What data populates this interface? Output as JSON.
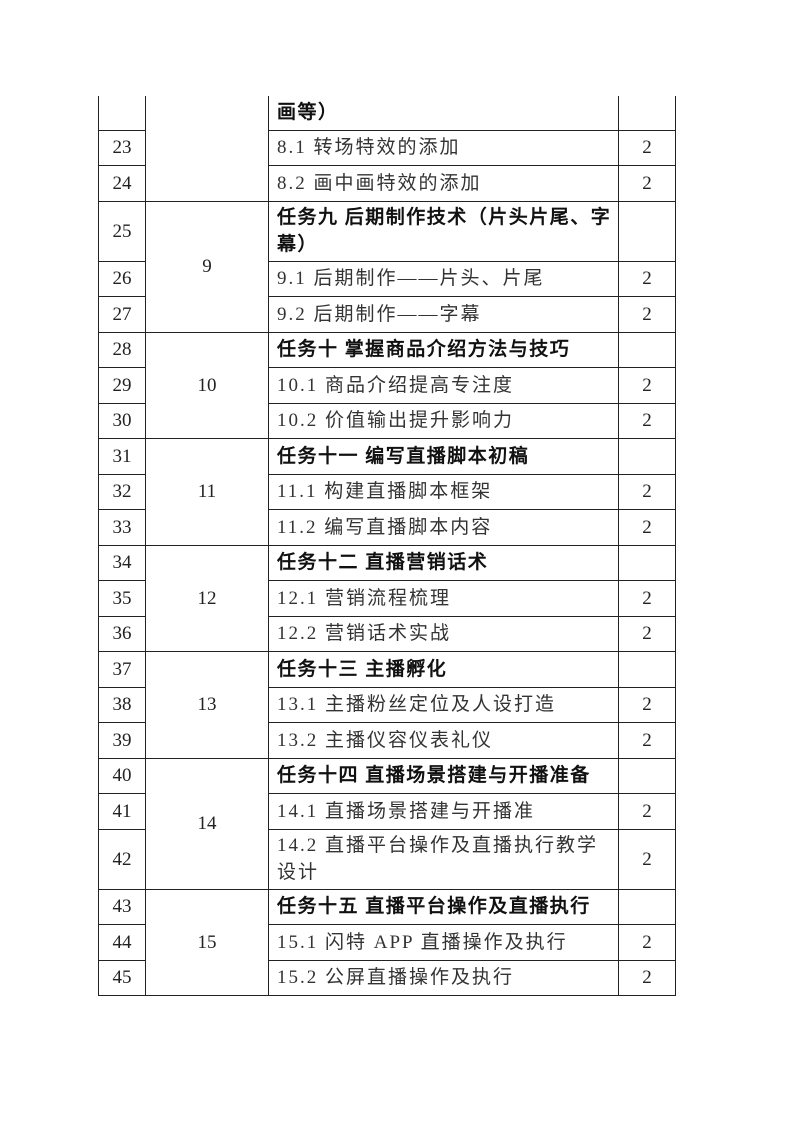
{
  "groups": [
    {
      "group": "",
      "rows": [
        {
          "no": "",
          "title": "画等）",
          "hours": "",
          "bold": true,
          "partial": true
        },
        {
          "no": "23",
          "title": "8.1 转场特效的添加",
          "hours": "2"
        },
        {
          "no": "24",
          "title": "8.2 画中画特效的添加",
          "hours": "2"
        }
      ]
    },
    {
      "group": "9",
      "rows": [
        {
          "no": "25",
          "title": "任务九 后期制作技术（片头片尾、字幕）",
          "hours": "",
          "bold": true,
          "tall": true
        },
        {
          "no": "26",
          "title": "9.1 后期制作——片头、片尾",
          "hours": "2"
        },
        {
          "no": "27",
          "title": "9.2 后期制作——字幕",
          "hours": "2"
        }
      ]
    },
    {
      "group": "10",
      "rows": [
        {
          "no": "28",
          "title": "任务十 掌握商品介绍方法与技巧",
          "hours": "",
          "bold": true
        },
        {
          "no": "29",
          "title": "10.1 商品介绍提高专注度",
          "hours": "2"
        },
        {
          "no": "30",
          "title": "10.2 价值输出提升影响力",
          "hours": "2"
        }
      ]
    },
    {
      "group": "11",
      "rows": [
        {
          "no": "31",
          "title": "任务十一 编写直播脚本初稿",
          "hours": "",
          "bold": true
        },
        {
          "no": "32",
          "title": "11.1 构建直播脚本框架",
          "hours": "2"
        },
        {
          "no": "33",
          "title": "11.2 编写直播脚本内容",
          "hours": "2"
        }
      ]
    },
    {
      "group": "12",
      "rows": [
        {
          "no": "34",
          "title": "任务十二 直播营销话术",
          "hours": "",
          "bold": true
        },
        {
          "no": "35",
          "title": "12.1 营销流程梳理",
          "hours": "2"
        },
        {
          "no": "36",
          "title": "12.2 营销话术实战",
          "hours": "2"
        }
      ]
    },
    {
      "group": "13",
      "rows": [
        {
          "no": "37",
          "title": "任务十三 主播孵化",
          "hours": "",
          "bold": true
        },
        {
          "no": "38",
          "title": "13.1 主播粉丝定位及人设打造",
          "hours": "2"
        },
        {
          "no": "39",
          "title": "13.2 主播仪容仪表礼仪",
          "hours": "2"
        }
      ]
    },
    {
      "group": "14",
      "rows": [
        {
          "no": "40",
          "title": "任务十四 直播场景搭建与开播准备",
          "hours": "",
          "bold": true
        },
        {
          "no": "41",
          "title": "14.1 直播场景搭建与开播准",
          "hours": "2"
        },
        {
          "no": "42",
          "title": "14.2 直播平台操作及直播执行教学设计",
          "hours": "2",
          "tall": true
        }
      ]
    },
    {
      "group": "15",
      "rows": [
        {
          "no": "43",
          "title": "任务十五 直播平台操作及直播执行",
          "hours": "",
          "bold": true
        },
        {
          "no": "44",
          "title": "15.1 闪特 APP 直播操作及执行",
          "hours": "2"
        },
        {
          "no": "45",
          "title": "15.2 公屏直播操作及执行",
          "hours": "2"
        }
      ]
    }
  ]
}
